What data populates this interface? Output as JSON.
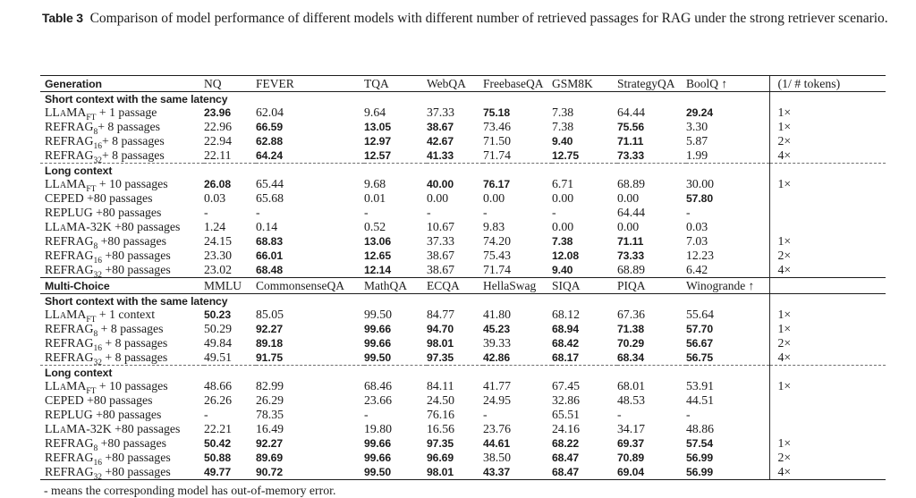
{
  "colors": {
    "text": "#1c1c1c",
    "background": "#ffffff",
    "rule": "#1c1c1c",
    "dashed_rule": "#6e6e6e"
  },
  "caption": {
    "tag": "Table 3",
    "text": "Comparison of model performance of different models with different number of retrieved passages for RAG under the strong retriever scenario."
  },
  "footnote": "- means the corresponding model has out-of-memory error.",
  "table": {
    "groups": [
      {
        "header": [
          "Generation",
          "NQ",
          "FEVER",
          "TQA",
          "WebQA",
          "FreebaseQA",
          "GSM8K",
          "StrategyQA",
          "BoolQ ↑",
          "(1/ # tokens)"
        ],
        "sections": [
          {
            "label": "Short context with the same latency",
            "dashed_above": false,
            "rows": [
              {
                "model": {
                  "main": "LLaMA",
                  "sub": "FT",
                  "rest": " + 1 passage"
                },
                "values": [
                  "23.96",
                  "62.04",
                  "9.64",
                  "37.33",
                  "75.18",
                  "7.38",
                  "64.44",
                  "29.24"
                ],
                "bold": [
                  1,
                  0,
                  0,
                  0,
                  1,
                  0,
                  0,
                  1
                ],
                "tokens": "1×"
              },
              {
                "model": {
                  "main": "REFRAG",
                  "sub": "8",
                  "rest": "+ 8 passages"
                },
                "values": [
                  "22.96",
                  "66.59",
                  "13.05",
                  "38.67",
                  "73.46",
                  "7.38",
                  "75.56",
                  "3.30"
                ],
                "bold": [
                  0,
                  1,
                  1,
                  1,
                  0,
                  0,
                  1,
                  0
                ],
                "tokens": "1×"
              },
              {
                "model": {
                  "main": "REFRAG",
                  "sub": "16",
                  "rest": "+ 8 passages"
                },
                "values": [
                  "22.94",
                  "62.88",
                  "12.97",
                  "42.67",
                  "71.50",
                  "9.40",
                  "71.11",
                  "5.87"
                ],
                "bold": [
                  0,
                  1,
                  1,
                  1,
                  0,
                  1,
                  1,
                  0
                ],
                "tokens": "2×"
              },
              {
                "model": {
                  "main": "REFRAG",
                  "sub": "32",
                  "rest": "+ 8 passages"
                },
                "values": [
                  "22.11",
                  "64.24",
                  "12.57",
                  "41.33",
                  "71.74",
                  "12.75",
                  "73.33",
                  "1.99"
                ],
                "bold": [
                  0,
                  1,
                  1,
                  1,
                  0,
                  1,
                  1,
                  0
                ],
                "tokens": "4×"
              }
            ]
          },
          {
            "label": "Long context",
            "dashed_above": true,
            "rows": [
              {
                "model": {
                  "main": "LLaMA",
                  "sub": "FT",
                  "rest": " + 10 passages"
                },
                "values": [
                  "26.08",
                  "65.44",
                  "9.68",
                  "40.00",
                  "76.17",
                  "6.71",
                  "68.89",
                  "30.00"
                ],
                "bold": [
                  1,
                  0,
                  0,
                  1,
                  1,
                  0,
                  0,
                  0
                ],
                "tokens": "1×"
              },
              {
                "model": {
                  "main": "CEPED",
                  "sub": "",
                  "rest": " +80 passages"
                },
                "values": [
                  "0.03",
                  "65.68",
                  "0.01",
                  "0.00",
                  "0.00",
                  "0.00",
                  "0.00",
                  "57.80"
                ],
                "bold": [
                  0,
                  0,
                  0,
                  0,
                  0,
                  0,
                  0,
                  1
                ],
                "tokens": ""
              },
              {
                "model": {
                  "main": "REPLUG",
                  "sub": "",
                  "rest": " +80 passages"
                },
                "values": [
                  "-",
                  "-",
                  "-",
                  "-",
                  "-",
                  "-",
                  "64.44",
                  "-"
                ],
                "bold": [
                  0,
                  0,
                  0,
                  0,
                  0,
                  0,
                  0,
                  0
                ],
                "tokens": ""
              },
              {
                "model": {
                  "main": "LLaMA-32K",
                  "sub": "",
                  "rest": " +80 passages"
                },
                "values": [
                  "1.24",
                  "0.14",
                  "0.52",
                  "10.67",
                  "9.83",
                  "0.00",
                  "0.00",
                  "0.03"
                ],
                "bold": [
                  0,
                  0,
                  0,
                  0,
                  0,
                  0,
                  0,
                  0
                ],
                "tokens": ""
              },
              {
                "model": {
                  "main": "REFRAG",
                  "sub": "8",
                  "rest": " +80 passages"
                },
                "values": [
                  "24.15",
                  "68.83",
                  "13.06",
                  "37.33",
                  "74.20",
                  "7.38",
                  "71.11",
                  "7.03"
                ],
                "bold": [
                  0,
                  1,
                  1,
                  0,
                  0,
                  1,
                  1,
                  0
                ],
                "tokens": "1×"
              },
              {
                "model": {
                  "main": "REFRAG",
                  "sub": "16",
                  "rest": " +80 passages"
                },
                "values": [
                  "23.30",
                  "66.01",
                  "12.65",
                  "38.67",
                  "75.43",
                  "12.08",
                  "73.33",
                  "12.23"
                ],
                "bold": [
                  0,
                  1,
                  1,
                  0,
                  0,
                  1,
                  1,
                  0
                ],
                "tokens": "2×"
              },
              {
                "model": {
                  "main": "REFRAG",
                  "sub": "32",
                  "rest": " +80 passages"
                },
                "values": [
                  "23.02",
                  "68.48",
                  "12.14",
                  "38.67",
                  "71.74",
                  "9.40",
                  "68.89",
                  "6.42"
                ],
                "bold": [
                  0,
                  1,
                  1,
                  0,
                  0,
                  1,
                  0,
                  0
                ],
                "tokens": "4×"
              }
            ]
          }
        ]
      },
      {
        "header": [
          "Multi-Choice",
          "MMLU",
          "CommonsenseQA",
          "MathQA",
          "ECQA",
          "HellaSwag",
          "SIQA",
          "PIQA",
          "Winogrande ↑",
          ""
        ],
        "sections": [
          {
            "label": "Short context with the same latency",
            "dashed_above": false,
            "rows": [
              {
                "model": {
                  "main": "LLaMA",
                  "sub": "FT",
                  "rest": " + 1 context"
                },
                "values": [
                  "50.23",
                  "85.05",
                  "99.50",
                  "84.77",
                  "41.80",
                  "68.12",
                  "67.36",
                  "55.64"
                ],
                "bold": [
                  1,
                  0,
                  0,
                  0,
                  0,
                  0,
                  0,
                  0
                ],
                "tokens": "1×"
              },
              {
                "model": {
                  "main": "REFRAG",
                  "sub": "8",
                  "rest": " + 8 passages"
                },
                "values": [
                  "50.29",
                  "92.27",
                  "99.66",
                  "94.70",
                  "45.23",
                  "68.94",
                  "71.38",
                  "57.70"
                ],
                "bold": [
                  0,
                  1,
                  1,
                  1,
                  1,
                  1,
                  1,
                  1
                ],
                "tokens": "1×"
              },
              {
                "model": {
                  "main": "REFRAG",
                  "sub": "16",
                  "rest": " + 8 passages"
                },
                "values": [
                  "49.84",
                  "89.18",
                  "99.66",
                  "98.01",
                  "39.33",
                  "68.42",
                  "70.29",
                  "56.67"
                ],
                "bold": [
                  0,
                  1,
                  1,
                  1,
                  0,
                  1,
                  1,
                  1
                ],
                "tokens": "2×"
              },
              {
                "model": {
                  "main": "REFRAG",
                  "sub": "32",
                  "rest": " + 8 passages"
                },
                "values": [
                  "49.51",
                  "91.75",
                  "99.50",
                  "97.35",
                  "42.86",
                  "68.17",
                  "68.34",
                  "56.75"
                ],
                "bold": [
                  0,
                  1,
                  1,
                  1,
                  1,
                  1,
                  1,
                  1
                ],
                "tokens": "4×"
              }
            ]
          },
          {
            "label": "Long context",
            "dashed_above": true,
            "rows": [
              {
                "model": {
                  "main": "LLaMA",
                  "sub": "FT",
                  "rest": " + 10 passages"
                },
                "values": [
                  "48.66",
                  "82.99",
                  "68.46",
                  "84.11",
                  "41.77",
                  "67.45",
                  "68.01",
                  "53.91"
                ],
                "bold": [
                  0,
                  0,
                  0,
                  0,
                  0,
                  0,
                  0,
                  0
                ],
                "tokens": "1×"
              },
              {
                "model": {
                  "main": "CEPED",
                  "sub": "",
                  "rest": " +80 passages"
                },
                "values": [
                  "26.26",
                  "26.29",
                  "23.66",
                  "24.50",
                  "24.95",
                  "32.86",
                  "48.53",
                  "44.51"
                ],
                "bold": [
                  0,
                  0,
                  0,
                  0,
                  0,
                  0,
                  0,
                  0
                ],
                "tokens": ""
              },
              {
                "model": {
                  "main": "REPLUG",
                  "sub": "",
                  "rest": " +80 passages"
                },
                "values": [
                  "-",
                  "78.35",
                  "-",
                  "76.16",
                  "-",
                  "65.51",
                  "-",
                  "-"
                ],
                "bold": [
                  0,
                  0,
                  0,
                  0,
                  0,
                  0,
                  0,
                  0
                ],
                "tokens": ""
              },
              {
                "model": {
                  "main": "LLaMA-32K",
                  "sub": "",
                  "rest": " +80 passages"
                },
                "values": [
                  "22.21",
                  "16.49",
                  "19.80",
                  "16.56",
                  "23.76",
                  "24.16",
                  "34.17",
                  "48.86"
                ],
                "bold": [
                  0,
                  0,
                  0,
                  0,
                  0,
                  0,
                  0,
                  0
                ],
                "tokens": ""
              },
              {
                "model": {
                  "main": "REFRAG",
                  "sub": "8",
                  "rest": " +80 passages"
                },
                "values": [
                  "50.42",
                  "92.27",
                  "99.66",
                  "97.35",
                  "44.61",
                  "68.22",
                  "69.37",
                  "57.54"
                ],
                "bold": [
                  1,
                  1,
                  1,
                  1,
                  1,
                  1,
                  1,
                  1
                ],
                "tokens": "1×"
              },
              {
                "model": {
                  "main": "REFRAG",
                  "sub": "16",
                  "rest": " +80 passages"
                },
                "values": [
                  "50.88",
                  "89.69",
                  "99.66",
                  "96.69",
                  "38.50",
                  "68.47",
                  "70.89",
                  "56.99"
                ],
                "bold": [
                  1,
                  1,
                  1,
                  1,
                  0,
                  1,
                  1,
                  1
                ],
                "tokens": "2×"
              },
              {
                "model": {
                  "main": "REFRAG",
                  "sub": "32",
                  "rest": " +80 passages"
                },
                "values": [
                  "49.77",
                  "90.72",
                  "99.50",
                  "98.01",
                  "43.37",
                  "68.47",
                  "69.04",
                  "56.99"
                ],
                "bold": [
                  1,
                  1,
                  1,
                  1,
                  1,
                  1,
                  1,
                  1
                ],
                "tokens": "4×"
              }
            ]
          }
        ]
      }
    ]
  }
}
